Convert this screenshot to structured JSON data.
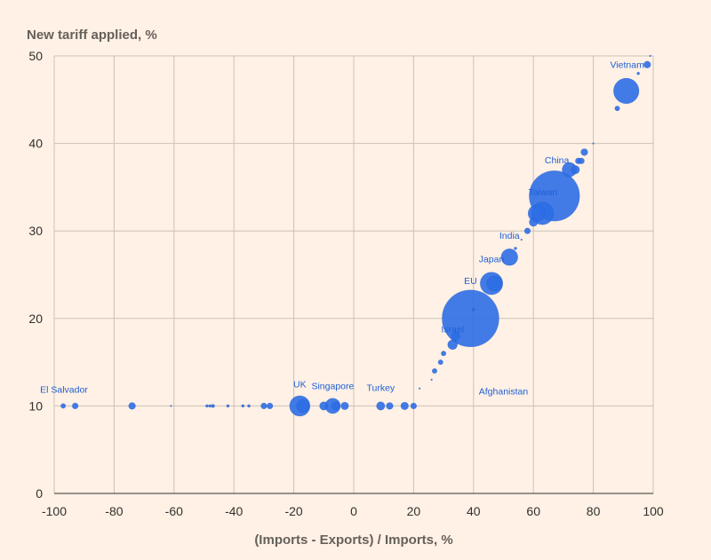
{
  "chart_data": {
    "type": "scatter",
    "title": "",
    "ylabel": "New tariff applied, %",
    "xlabel": "(Imports - Exports) / Imports, %",
    "xlim": [
      -100,
      100
    ],
    "ylim": [
      0,
      50
    ],
    "x_ticks": [
      -100,
      -80,
      -60,
      -40,
      -20,
      0,
      20,
      40,
      60,
      80,
      100
    ],
    "y_ticks": [
      0,
      10,
      20,
      30,
      40,
      50
    ],
    "x_tick_labels": [
      "-100",
      "-80",
      "-60",
      "-40",
      "-20",
      "0",
      "20",
      "40",
      "60",
      "80",
      "100"
    ],
    "y_tick_labels": [
      "0",
      "10",
      "20",
      "30",
      "40",
      "50"
    ],
    "grid": true,
    "point_color": "#2e6ee6",
    "label_color": "#1f5fd6",
    "size_encoding": "bubble area proportional to trade volume (relative units)",
    "points": [
      {
        "x": -97,
        "y": 10,
        "size": 1
      },
      {
        "x": -93,
        "y": 10,
        "size": 1.5
      },
      {
        "x": -74,
        "y": 10,
        "size": 2
      },
      {
        "x": -61,
        "y": 10,
        "size": 0.1
      },
      {
        "x": -49,
        "y": 10,
        "size": 0.3
      },
      {
        "x": -48,
        "y": 10,
        "size": 0.3
      },
      {
        "x": -47,
        "y": 10,
        "size": 0.5
      },
      {
        "x": -42,
        "y": 10,
        "size": 0.3
      },
      {
        "x": -37,
        "y": 10,
        "size": 0.3
      },
      {
        "x": -35,
        "y": 10,
        "size": 0.3
      },
      {
        "x": -30,
        "y": 10,
        "size": 1.5
      },
      {
        "x": -28,
        "y": 10,
        "size": 1.5
      },
      {
        "x": -18,
        "y": 10,
        "size": 18
      },
      {
        "x": -17,
        "y": 10,
        "size": 7
      },
      {
        "x": -10,
        "y": 10,
        "size": 3
      },
      {
        "x": -7,
        "y": 10,
        "size": 10
      },
      {
        "x": -6,
        "y": 10,
        "size": 3
      },
      {
        "x": -3,
        "y": 10,
        "size": 2.5
      },
      {
        "x": 9,
        "y": 10,
        "size": 3
      },
      {
        "x": 12,
        "y": 10,
        "size": 2
      },
      {
        "x": 17,
        "y": 10,
        "size": 2.5
      },
      {
        "x": 20,
        "y": 10,
        "size": 1.5
      },
      {
        "x": 22,
        "y": 12,
        "size": 0.1
      },
      {
        "x": 26,
        "y": 13,
        "size": 0.1
      },
      {
        "x": 27,
        "y": 14,
        "size": 1
      },
      {
        "x": 29,
        "y": 15,
        "size": 1
      },
      {
        "x": 30,
        "y": 16,
        "size": 1
      },
      {
        "x": 33,
        "y": 17,
        "size": 4
      },
      {
        "x": 34,
        "y": 18,
        "size": 3
      },
      {
        "x": 39,
        "y": 20,
        "size": 140
      },
      {
        "x": 40,
        "y": 21,
        "size": 0.3
      },
      {
        "x": 46,
        "y": 24,
        "size": 22
      },
      {
        "x": 47,
        "y": 24,
        "size": 10
      },
      {
        "x": 52,
        "y": 27,
        "size": 12
      },
      {
        "x": 54,
        "y": 28,
        "size": 0.3
      },
      {
        "x": 56,
        "y": 29,
        "size": 0.1
      },
      {
        "x": 58,
        "y": 30,
        "size": 1.5
      },
      {
        "x": 60,
        "y": 31,
        "size": 3
      },
      {
        "x": 61,
        "y": 32,
        "size": 12
      },
      {
        "x": 63,
        "y": 32,
        "size": 22
      },
      {
        "x": 67,
        "y": 34,
        "size": 110
      },
      {
        "x": 72,
        "y": 37,
        "size": 9
      },
      {
        "x": 74,
        "y": 37,
        "size": 3
      },
      {
        "x": 75,
        "y": 38,
        "size": 1.5
      },
      {
        "x": 76,
        "y": 38,
        "size": 1.5
      },
      {
        "x": 77,
        "y": 39,
        "size": 2
      },
      {
        "x": 80,
        "y": 40,
        "size": 0.1
      },
      {
        "x": 88,
        "y": 44,
        "size": 1
      },
      {
        "x": 91,
        "y": 46,
        "size": 28
      },
      {
        "x": 95,
        "y": 48,
        "size": 0.3
      },
      {
        "x": 98,
        "y": 49,
        "size": 2
      },
      {
        "x": 99,
        "y": 50,
        "size": 0.1
      }
    ],
    "annotations": [
      {
        "text": "El Salvador",
        "x": -97,
        "y": 10,
        "anchor": "start",
        "dx": -26,
        "dy": -15
      },
      {
        "text": "UK",
        "x": -18,
        "y": 10,
        "anchor": "middle",
        "dx": 0,
        "dy": -21
      },
      {
        "text": "Singapore",
        "x": -7,
        "y": 10,
        "anchor": "middle",
        "dx": 0,
        "dy": -19
      },
      {
        "text": "Turkey",
        "x": 9,
        "y": 10,
        "anchor": "middle",
        "dx": 0,
        "dy": -17
      },
      {
        "text": "Afghanistan",
        "x": 50,
        "y": 10,
        "anchor": "middle",
        "dx": 0,
        "dy": -13
      },
      {
        "text": "Israel",
        "x": 33,
        "y": 17,
        "anchor": "middle",
        "dx": 0,
        "dy": -14
      },
      {
        "text": "EU",
        "x": 39,
        "y": 20,
        "anchor": "middle",
        "dx": 0,
        "dy": -39
      },
      {
        "text": "Japan",
        "x": 46,
        "y": 24,
        "anchor": "middle",
        "dx": 0,
        "dy": -24
      },
      {
        "text": "India",
        "x": 52,
        "y": 27,
        "anchor": "middle",
        "dx": 0,
        "dy": -21
      },
      {
        "text": "Taiwan",
        "x": 67,
        "y": 34,
        "anchor": "middle",
        "dx": -13,
        "dy": -1
      },
      {
        "text": "China",
        "x": 72,
        "y": 37,
        "anchor": "middle",
        "dx": -14,
        "dy": -7
      },
      {
        "text": "Vietnam",
        "x": 91,
        "y": 46,
        "anchor": "middle",
        "dx": 1,
        "dy": -26
      }
    ]
  }
}
